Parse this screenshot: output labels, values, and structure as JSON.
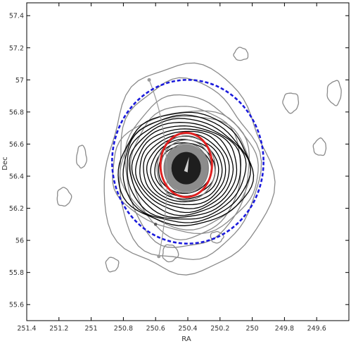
{
  "chart_data": {
    "type": "contour",
    "xlabel": "RA",
    "ylabel": "Dec",
    "x_reversed": true,
    "xlim": [
      251.4,
      249.4
    ],
    "ylim": [
      55.5,
      57.48
    ],
    "xticks": [
      251.4,
      251.2,
      251.0,
      250.8,
      250.6,
      250.4,
      250.2,
      250.0,
      249.8,
      249.6
    ],
    "xtick_labels": [
      "251.4",
      "251.2",
      "251",
      "250.8",
      "250.6",
      "250.4",
      "250.2",
      "250",
      "249.8",
      "249.6"
    ],
    "yticks": [
      57.4,
      57.2,
      57.0,
      56.8,
      56.6,
      56.4,
      56.2,
      56.0,
      55.8,
      55.6
    ],
    "ytick_labels": [
      "57.4",
      "57.2",
      "57",
      "56.8",
      "56.6",
      "56.4",
      "56.2",
      "56",
      "55.8",
      "55.6"
    ],
    "source_center": {
      "ra": 250.41,
      "dec": 56.45
    },
    "circles": [
      {
        "name": "blue-dashed-ellipse",
        "center_ra": 250.4,
        "center_dec": 56.49,
        "half_width_ra": 0.47,
        "half_height_dec": 0.51,
        "color": "#1a1adc",
        "style": "dashed"
      },
      {
        "name": "red-circle",
        "center_ra": 250.41,
        "center_dec": 56.47,
        "half_width_ra": 0.16,
        "half_height_dec": 0.2,
        "color": "#e02020",
        "style": "solid"
      }
    ],
    "contour_levels_black": 12,
    "contour_levels_gray": 6,
    "grid": false
  }
}
